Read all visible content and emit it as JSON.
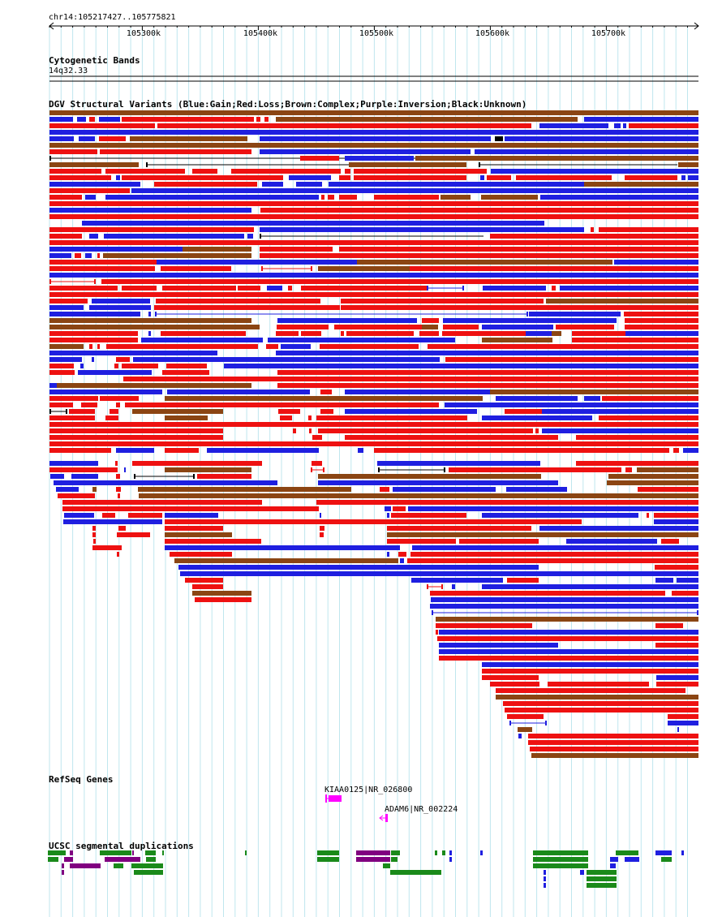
{
  "region": "chr14:105217427..105775821",
  "ruler": {
    "ticks": [
      "105300k",
      "105400k",
      "105500k",
      "105600k",
      "105700k"
    ]
  },
  "cytoband": {
    "title": "Cytogenetic Bands",
    "band": "14q32.33"
  },
  "dgv": {
    "title": "DGV Structural Variants (Blue:Gain;Red:Loss;Brown:Complex;Purple:Inversion;Black:Unknown)",
    "colors": {
      "gain": "#1f1fe0",
      "loss": "#ee1111",
      "complex": "#8b4513",
      "inversion": "#800080",
      "unknown": "#000000"
    }
  },
  "refseq": {
    "title": "RefSeq Genes",
    "genes": [
      {
        "label": "KIAA0125|NR_026800",
        "strand": "+",
        "color": "#ff00ff"
      },
      {
        "label": "ADAM6|NR_002224",
        "strand": "-",
        "color": "#ff00ff"
      }
    ]
  },
  "segdup": {
    "title": "UCSC segmental duplications",
    "colors": {
      "green": "#1a8a1a",
      "purple": "#800080",
      "blue": "#1f1fe0"
    }
  }
}
